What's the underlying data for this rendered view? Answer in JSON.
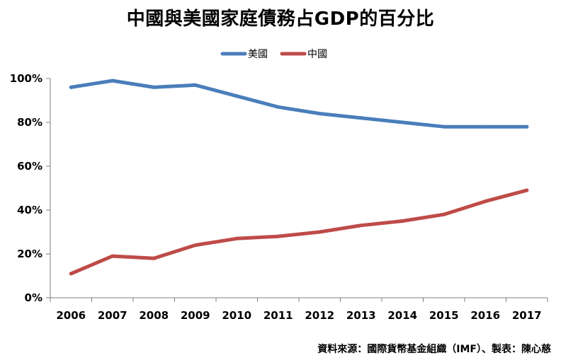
{
  "chart_data": {
    "type": "line",
    "title": "中國與美國家庭債務占GDP的百分比",
    "categories": [
      "2006",
      "2007",
      "2008",
      "2009",
      "2010",
      "2011",
      "2012",
      "2013",
      "2014",
      "2015",
      "2016",
      "2017"
    ],
    "series": [
      {
        "name": "美國",
        "color": "#4a7ebb",
        "values": [
          96,
          99,
          96,
          97,
          92,
          87,
          84,
          82,
          80,
          78,
          78,
          78
        ]
      },
      {
        "name": "中國",
        "color": "#be4b48",
        "values": [
          11,
          19,
          18,
          24,
          27,
          28,
          30,
          33,
          35,
          38,
          44,
          49
        ]
      }
    ],
    "ylim": [
      0,
      100
    ],
    "yticks": [
      0,
      20,
      40,
      60,
      80,
      100
    ],
    "ytick_labels": [
      "0%",
      "20%",
      "40%",
      "60%",
      "80%",
      "100%"
    ],
    "xlabel": "",
    "ylabel": "",
    "legend_position": "top-center",
    "grid": false
  },
  "footer": {
    "source": "資料來源：國際貨幣基金組織（IMF）、製表：陳心慈"
  }
}
